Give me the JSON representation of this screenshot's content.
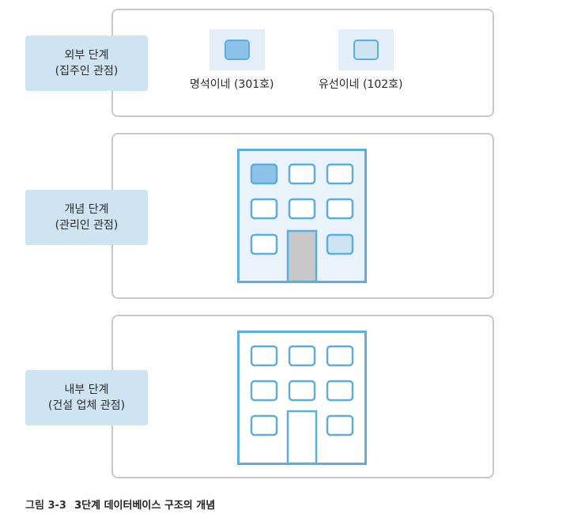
{
  "levels": {
    "external": {
      "title": "외부 단계",
      "subtitle": "(집주인 관점)"
    },
    "conceptual": {
      "title": "개념 단계",
      "subtitle": "(관리인 관점)"
    },
    "internal": {
      "title": "내부 단계",
      "subtitle": "(건설 업체 관점)"
    }
  },
  "units": [
    {
      "name": "명석이네 (301호)",
      "color": "#8ec2e8"
    },
    {
      "name": "유선이네 (102호)",
      "color": "#cfe4f3"
    }
  ],
  "colors": {
    "label_bg": "#cfe4f3",
    "outline": "#5aaee0",
    "building_fill": "#eaf3fb",
    "door_gray": "#c8c8c8",
    "unit_301": "#8ec2e8",
    "unit_102": "#cfe4f3"
  },
  "caption": {
    "number": "그림 3-3",
    "text": "3단계 데이터베이스 구조의 개념"
  }
}
